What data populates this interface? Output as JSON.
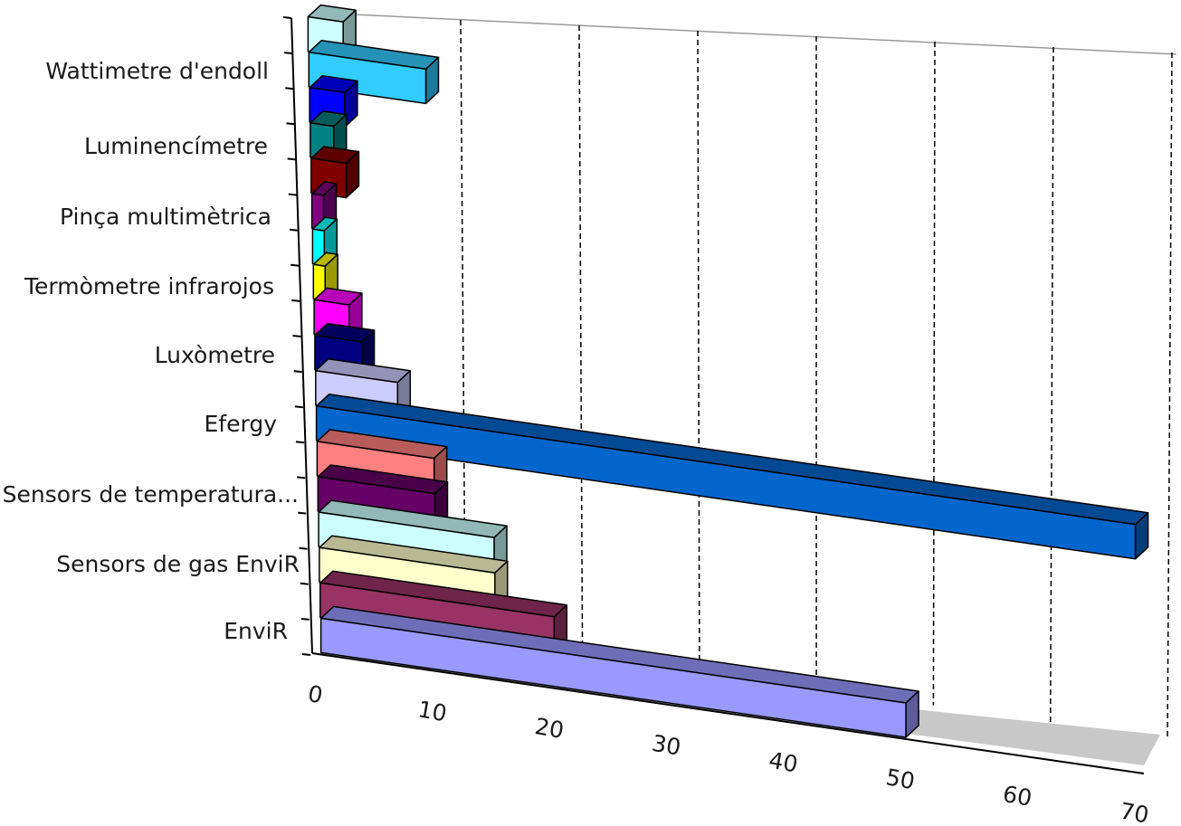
{
  "chart_data": {
    "type": "bar",
    "orientation": "horizontal",
    "style": "3d-clustered",
    "category_labels": [
      "EnviR",
      "Sensors de gas EnviR",
      "Sensors de temperatura...",
      "Efergy",
      "Luxòmetre",
      "Termòmetre infrarojos",
      "Pinça multimètrica",
      "Luminencímetre",
      "Wattimetre d'endoll"
    ],
    "bars": [
      {
        "value": 50,
        "color": "#9999ff"
      },
      {
        "value": 20,
        "color": "#993366"
      },
      {
        "value": 15,
        "color": "#ffffcc"
      },
      {
        "value": 15,
        "color": "#ccffff"
      },
      {
        "value": 10,
        "color": "#660066"
      },
      {
        "value": 10,
        "color": "#ff8080"
      },
      {
        "value": 70,
        "color": "#0066cc"
      },
      {
        "value": 7,
        "color": "#ccccff"
      },
      {
        "value": 4,
        "color": "#000080"
      },
      {
        "value": 3,
        "color": "#ff00ff"
      },
      {
        "value": 1,
        "color": "#ffff00"
      },
      {
        "value": 1,
        "color": "#00ffff"
      },
      {
        "value": 1,
        "color": "#800080"
      },
      {
        "value": 3,
        "color": "#800000"
      },
      {
        "value": 2,
        "color": "#008080"
      },
      {
        "value": 3,
        "color": "#0000ff"
      },
      {
        "value": 10,
        "color": "#33ccff"
      },
      {
        "value": 3,
        "color": "#ccffff"
      }
    ],
    "x_ticks": [
      "0",
      "10",
      "20",
      "30",
      "40",
      "50",
      "60",
      "70"
    ],
    "xlim": [
      0,
      70
    ],
    "grid": "vertical dashed gridlines on back wall"
  }
}
